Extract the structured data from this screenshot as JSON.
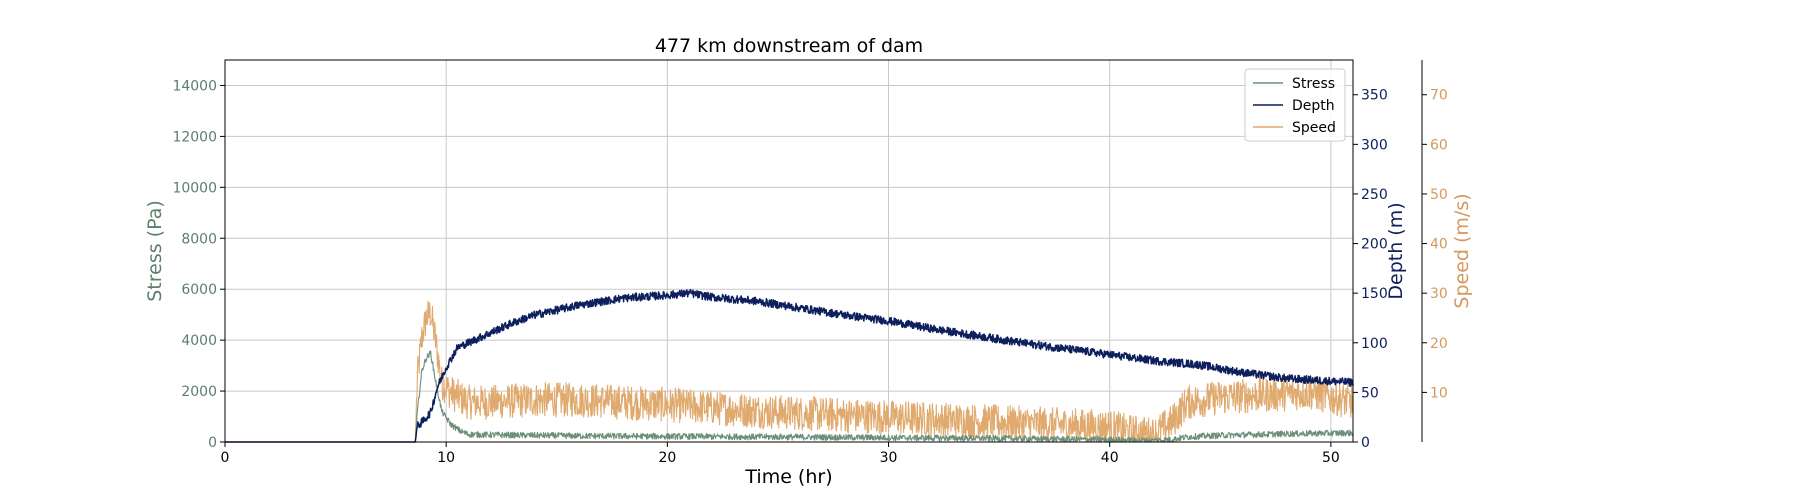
{
  "chart_data": {
    "type": "line",
    "title": "477 km downstream of dam",
    "xlabel": "Time (hr)",
    "xlim": [
      0,
      51
    ],
    "x_ticks": [
      0,
      10,
      20,
      30,
      40,
      50
    ],
    "grid": true,
    "legend_position": "top-right",
    "axes": {
      "left": {
        "label": "Stress (Pa)",
        "color": "#5c7f6c",
        "ylim": [
          0,
          15000
        ],
        "ticks": [
          0,
          2000,
          4000,
          6000,
          8000,
          10000,
          12000,
          14000
        ]
      },
      "right1": {
        "label": "Depth (m)",
        "color": "#0d1f5c",
        "ylim": [
          0,
          385
        ],
        "ticks": [
          0,
          50,
          100,
          150,
          200,
          250,
          300,
          350
        ]
      },
      "right2": {
        "label": "Speed (m/s)",
        "color": "#d6995c",
        "ylim": [
          0,
          77
        ],
        "ticks": [
          10,
          20,
          30,
          40,
          50,
          60,
          70
        ]
      }
    },
    "series": [
      {
        "name": "Stress",
        "axis": "left",
        "color": "#6b8f7a",
        "noise": 120,
        "x": [
          0,
          8.6,
          8.7,
          8.9,
          9.1,
          9.3,
          9.5,
          9.8,
          10.2,
          10.6,
          11,
          12,
          14,
          16,
          20,
          25,
          30,
          35,
          40,
          42,
          42.8,
          43.5,
          45,
          48,
          51
        ],
        "y": [
          0,
          0,
          1200,
          2800,
          3300,
          3500,
          2500,
          1200,
          700,
          450,
          300,
          280,
          260,
          240,
          220,
          200,
          170,
          140,
          90,
          60,
          100,
          200,
          260,
          320,
          360
        ]
      },
      {
        "name": "Depth",
        "axis": "right1",
        "color": "#0d1f5c",
        "noise": 4,
        "x": [
          0,
          8.6,
          8.7,
          9.0,
          9.3,
          9.6,
          10,
          10.5,
          11,
          12,
          13,
          14,
          16,
          18,
          20,
          21,
          22,
          24,
          26,
          28,
          30,
          32,
          34,
          36,
          38,
          40,
          42,
          44,
          46,
          48,
          51
        ],
        "y": [
          0,
          0,
          16,
          22,
          30,
          55,
          75,
          95,
          100,
          110,
          120,
          128,
          138,
          145,
          148,
          150,
          146,
          142,
          135,
          128,
          122,
          114,
          107,
          100,
          94,
          88,
          82,
          78,
          70,
          64,
          60
        ]
      },
      {
        "name": "Speed",
        "axis": "right2",
        "color": "#e0a96d",
        "noise": 3.5,
        "x": [
          0,
          8.6,
          8.7,
          8.9,
          9.1,
          9.3,
          9.5,
          9.8,
          10.2,
          10.6,
          11,
          12,
          14,
          16,
          18,
          20,
          25,
          30,
          35,
          40,
          41,
          42,
          42.8,
          43.5,
          45,
          47,
          49,
          51
        ],
        "y": [
          0,
          0,
          13,
          21,
          25,
          26,
          21,
          12,
          10,
          9,
          8,
          8,
          8.5,
          8.5,
          8,
          7.5,
          6,
          5,
          4,
          3,
          2,
          1.5,
          4,
          8,
          9,
          9.5,
          10,
          8
        ]
      }
    ]
  }
}
